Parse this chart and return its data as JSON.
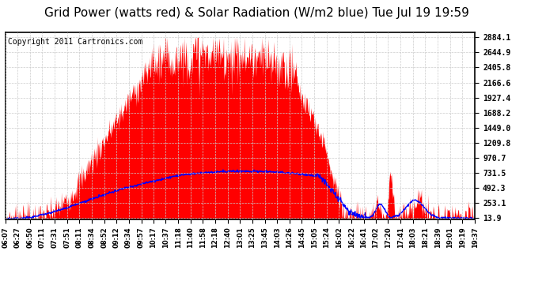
{
  "title": "Grid Power (watts red) & Solar Radiation (W/m2 blue) Tue Jul 19 19:59",
  "copyright_text": "Copyright 2011 Cartronics.com",
  "yticks": [
    13.9,
    253.1,
    492.3,
    731.5,
    970.7,
    1209.8,
    1449.0,
    1688.2,
    1927.4,
    2166.6,
    2405.8,
    2644.9,
    2884.1
  ],
  "ymin": 0,
  "ymax": 2960,
  "fill_color": "red",
  "line_color": "blue",
  "background_color": "white",
  "grid_color": "#aaaaaa",
  "title_fontsize": 11,
  "copyright_fontsize": 7,
  "xtick_labels": [
    "06:07",
    "06:27",
    "06:50",
    "07:11",
    "07:31",
    "07:51",
    "08:11",
    "08:34",
    "08:52",
    "09:12",
    "09:34",
    "09:57",
    "10:17",
    "10:37",
    "11:18",
    "11:40",
    "11:58",
    "12:18",
    "12:40",
    "13:01",
    "13:25",
    "13:45",
    "14:03",
    "14:26",
    "14:45",
    "15:05",
    "15:24",
    "16:02",
    "16:22",
    "16:41",
    "17:02",
    "17:20",
    "17:41",
    "18:03",
    "18:21",
    "18:39",
    "19:01",
    "19:19",
    "19:37"
  ]
}
